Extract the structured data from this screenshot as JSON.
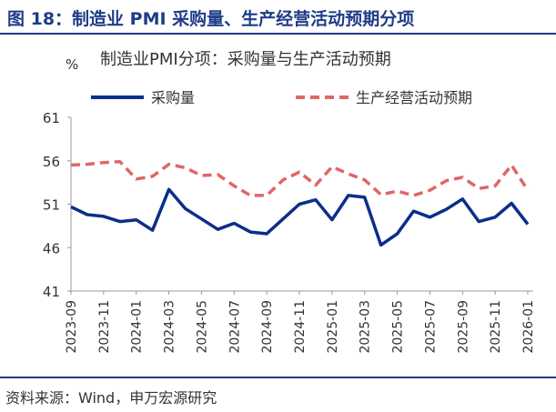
{
  "figure": {
    "title": "图 18：制造业 PMI 采购量、生产经营活动预期分项",
    "source": "资料来源：Wind，申万宏源研究"
  },
  "colors": {
    "brand": "#1f3c88",
    "series_purchase": "#0b2e8a",
    "series_expectation": "#e06666",
    "axis": "#999999",
    "text": "#333333"
  },
  "chart_data": {
    "type": "line",
    "title": "制造业PMI分项：采购量与生产活动预期",
    "ylabel": "%",
    "xlabel": "",
    "ylim": [
      41,
      61
    ],
    "yticks": [
      41,
      46,
      51,
      56,
      61
    ],
    "grid": false,
    "legend_position": "top",
    "x": [
      "2023-09",
      "2023-10",
      "2023-11",
      "2023-12",
      "2024-01",
      "2024-02",
      "2024-03",
      "2024-04",
      "2024-05",
      "2024-06",
      "2024-07",
      "2024-08",
      "2024-09",
      "2024-10",
      "2024-11",
      "2024-12",
      "2025-01",
      "2025-02",
      "2025-03",
      "2025-04",
      "2025-05",
      "2025-06",
      "2025-07",
      "2025-08",
      "2025-09",
      "2025-10",
      "2025-11",
      "2025-12",
      "2026-01"
    ],
    "xtick_labels": [
      "2023-09",
      "2023-11",
      "2024-01",
      "2024-03",
      "2024-05",
      "2024-07",
      "2024-09",
      "2024-11",
      "2025-01",
      "2025-03",
      "2025-05",
      "2025-07",
      "2025-09",
      "2025-11",
      "2026-01"
    ],
    "series": [
      {
        "name": "采购量",
        "style": "solid",
        "values": [
          50.7,
          49.8,
          49.6,
          49.0,
          49.2,
          48.0,
          52.7,
          50.5,
          49.3,
          48.1,
          48.8,
          47.8,
          47.6,
          49.3,
          51.0,
          51.5,
          49.2,
          52.0,
          51.8,
          46.3,
          47.6,
          50.2,
          49.5,
          50.4,
          51.6,
          49.0,
          49.5,
          51.1,
          48.7
        ]
      },
      {
        "name": "生产经营活动预期",
        "style": "dashed",
        "values": [
          55.5,
          55.6,
          55.8,
          55.9,
          53.9,
          54.2,
          55.6,
          55.2,
          54.3,
          54.4,
          53.1,
          52.0,
          52.0,
          53.8,
          54.7,
          53.2,
          55.3,
          54.5,
          53.8,
          52.1,
          52.5,
          52.0,
          52.6,
          53.7,
          54.1,
          52.8,
          53.1,
          55.5,
          52.6
        ]
      }
    ]
  }
}
